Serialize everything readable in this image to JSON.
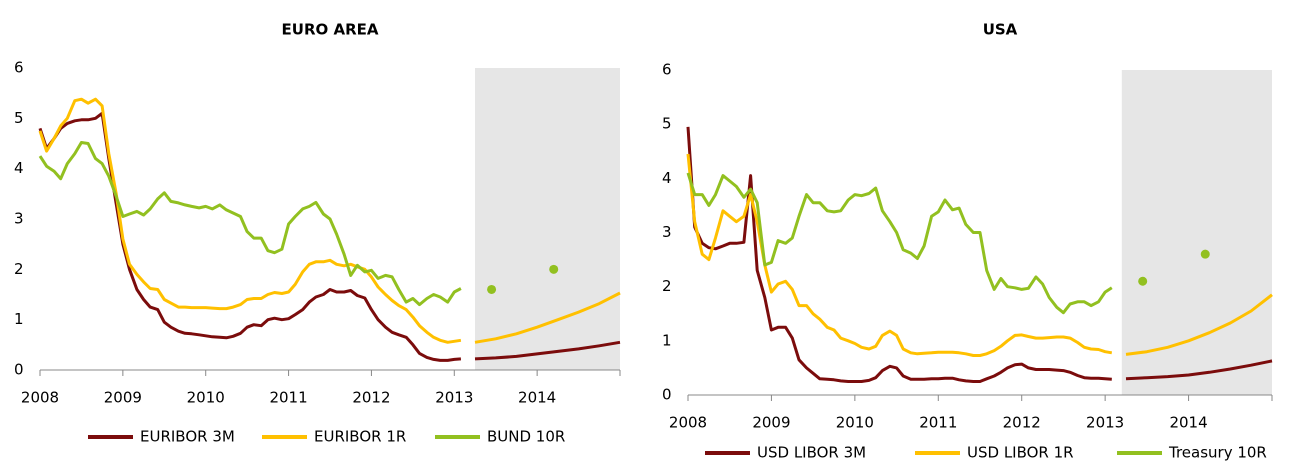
{
  "chart_data": [
    {
      "type": "line",
      "title": "EURO AREA",
      "x": [
        2008.0,
        2008.08,
        2008.17,
        2008.25,
        2008.33,
        2008.42,
        2008.5,
        2008.58,
        2008.67,
        2008.75,
        2008.83,
        2008.92,
        2009.0,
        2009.08,
        2009.17,
        2009.25,
        2009.33,
        2009.42,
        2009.5,
        2009.58,
        2009.67,
        2009.75,
        2009.83,
        2009.92,
        2010.0,
        2010.08,
        2010.17,
        2010.25,
        2010.33,
        2010.42,
        2010.5,
        2010.58,
        2010.67,
        2010.75,
        2010.83,
        2010.92,
        2011.0,
        2011.08,
        2011.17,
        2011.25,
        2011.33,
        2011.42,
        2011.5,
        2011.58,
        2011.67,
        2011.75,
        2011.83,
        2011.92,
        2012.0,
        2012.08,
        2012.17,
        2012.25,
        2012.33,
        2012.42,
        2012.5,
        2012.58,
        2012.67,
        2012.75,
        2012.83,
        2012.92,
        2013.0,
        2013.08,
        2013.17,
        2013.25,
        2013.5,
        2013.75,
        2014.0,
        2014.25,
        2014.5,
        2014.75,
        2015.0
      ],
      "series": [
        {
          "name": "EURIBOR 3M",
          "color": "#7b0c0c",
          "values": [
            4.8,
            4.4,
            4.6,
            4.8,
            4.9,
            4.95,
            4.97,
            4.97,
            5.0,
            5.1,
            4.2,
            3.3,
            2.5,
            2.0,
            1.6,
            1.4,
            1.25,
            1.2,
            0.95,
            0.85,
            0.77,
            0.73,
            0.72,
            0.7,
            0.68,
            0.66,
            0.65,
            0.64,
            0.67,
            0.73,
            0.85,
            0.9,
            0.88,
            1.0,
            1.03,
            1.0,
            1.02,
            1.1,
            1.2,
            1.35,
            1.45,
            1.5,
            1.6,
            1.55,
            1.55,
            1.58,
            1.48,
            1.43,
            1.2,
            1.0,
            0.85,
            0.75,
            0.7,
            0.65,
            0.5,
            0.33,
            0.25,
            0.21,
            0.19,
            0.19,
            0.21,
            0.22,
            null,
            0.22,
            0.24,
            0.27,
            0.32,
            0.37,
            0.42,
            0.48,
            0.55
          ]
        },
        {
          "name": "EURIBOR 1R",
          "color": "#ffc000",
          "values": [
            4.75,
            4.35,
            4.6,
            4.85,
            5.0,
            5.35,
            5.38,
            5.3,
            5.38,
            5.25,
            4.3,
            3.5,
            2.6,
            2.1,
            1.9,
            1.75,
            1.62,
            1.6,
            1.4,
            1.33,
            1.25,
            1.25,
            1.24,
            1.24,
            1.24,
            1.23,
            1.22,
            1.22,
            1.25,
            1.3,
            1.4,
            1.42,
            1.42,
            1.5,
            1.54,
            1.52,
            1.55,
            1.7,
            1.95,
            2.1,
            2.15,
            2.15,
            2.18,
            2.1,
            2.07,
            2.1,
            2.05,
            2.0,
            1.85,
            1.65,
            1.5,
            1.38,
            1.28,
            1.2,
            1.05,
            0.88,
            0.75,
            0.65,
            0.59,
            0.55,
            0.57,
            0.59,
            null,
            0.55,
            0.62,
            0.72,
            0.85,
            1.0,
            1.15,
            1.32,
            1.53
          ]
        },
        {
          "name": "BUND 10R",
          "color": "#92c020",
          "values": [
            4.25,
            4.05,
            3.95,
            3.8,
            4.1,
            4.3,
            4.52,
            4.5,
            4.2,
            4.1,
            3.85,
            3.45,
            3.05,
            3.1,
            3.15,
            3.08,
            3.2,
            3.4,
            3.52,
            3.35,
            3.32,
            3.28,
            3.25,
            3.22,
            3.25,
            3.2,
            3.28,
            3.18,
            3.12,
            3.05,
            2.75,
            2.62,
            2.62,
            2.37,
            2.33,
            2.4,
            2.9,
            3.05,
            3.2,
            3.25,
            3.33,
            3.1,
            3.0,
            2.7,
            2.3,
            1.88,
            2.08,
            1.95,
            1.98,
            1.82,
            1.88,
            1.85,
            1.6,
            1.35,
            1.42,
            1.3,
            1.42,
            1.5,
            1.45,
            1.35,
            1.55,
            1.62,
            null,
            null,
            null,
            null,
            null,
            null,
            null,
            null,
            null
          ],
          "forecast_points": {
            "x": [
              2013.45,
              2014.2
            ],
            "values": [
              1.6,
              2.0
            ]
          }
        }
      ],
      "shade": [
        2013.25,
        2015.0
      ],
      "xlim": [
        2008,
        2015
      ],
      "xticks": [
        2008,
        2009,
        2010,
        2011,
        2012,
        2013,
        2014
      ],
      "ylim": [
        0,
        6
      ],
      "yticks": [
        0,
        1,
        2,
        3,
        4,
        5,
        6
      ]
    },
    {
      "type": "line",
      "title": "USA",
      "x": [
        2008.0,
        2008.08,
        2008.17,
        2008.25,
        2008.33,
        2008.42,
        2008.5,
        2008.58,
        2008.67,
        2008.75,
        2008.83,
        2008.92,
        2009.0,
        2009.08,
        2009.17,
        2009.25,
        2009.33,
        2009.42,
        2009.5,
        2009.58,
        2009.67,
        2009.75,
        2009.83,
        2009.92,
        2010.0,
        2010.08,
        2010.17,
        2010.25,
        2010.33,
        2010.42,
        2010.5,
        2010.58,
        2010.67,
        2010.75,
        2010.83,
        2010.92,
        2011.0,
        2011.08,
        2011.17,
        2011.25,
        2011.33,
        2011.42,
        2011.5,
        2011.58,
        2011.67,
        2011.75,
        2011.83,
        2011.92,
        2012.0,
        2012.08,
        2012.17,
        2012.25,
        2012.33,
        2012.42,
        2012.5,
        2012.58,
        2012.67,
        2012.75,
        2012.83,
        2012.92,
        2013.0,
        2013.08,
        2013.17,
        2013.25,
        2013.5,
        2013.75,
        2014.0,
        2014.25,
        2014.5,
        2014.75,
        2015.0
      ],
      "series": [
        {
          "name": "USD LIBOR 3M",
          "color": "#7b0c0c",
          "values": [
            4.95,
            3.1,
            2.8,
            2.72,
            2.7,
            2.75,
            2.8,
            2.8,
            2.82,
            4.05,
            2.3,
            1.8,
            1.2,
            1.25,
            1.25,
            1.05,
            0.65,
            0.5,
            0.4,
            0.3,
            0.29,
            0.28,
            0.26,
            0.25,
            0.25,
            0.25,
            0.27,
            0.32,
            0.45,
            0.53,
            0.5,
            0.35,
            0.29,
            0.29,
            0.29,
            0.3,
            0.3,
            0.31,
            0.31,
            0.28,
            0.26,
            0.25,
            0.25,
            0.3,
            0.35,
            0.42,
            0.5,
            0.56,
            0.57,
            0.5,
            0.47,
            0.47,
            0.47,
            0.46,
            0.45,
            0.42,
            0.36,
            0.32,
            0.31,
            0.31,
            0.3,
            0.29,
            null,
            0.3,
            0.32,
            0.34,
            0.37,
            0.42,
            0.48,
            0.55,
            0.63
          ]
        },
        {
          "name": "USD LIBOR 1R",
          "color": "#ffc000",
          "values": [
            4.45,
            3.2,
            2.6,
            2.5,
            2.9,
            3.4,
            3.3,
            3.2,
            3.3,
            3.7,
            3.2,
            2.4,
            1.9,
            2.05,
            2.1,
            1.95,
            1.65,
            1.65,
            1.5,
            1.4,
            1.25,
            1.2,
            1.05,
            1.0,
            0.95,
            0.88,
            0.85,
            0.9,
            1.1,
            1.18,
            1.1,
            0.85,
            0.78,
            0.76,
            0.77,
            0.78,
            0.79,
            0.79,
            0.79,
            0.78,
            0.76,
            0.73,
            0.73,
            0.76,
            0.82,
            0.9,
            1.0,
            1.1,
            1.11,
            1.08,
            1.05,
            1.05,
            1.06,
            1.07,
            1.07,
            1.05,
            0.97,
            0.88,
            0.85,
            0.84,
            0.8,
            0.78,
            null,
            0.75,
            0.8,
            0.88,
            1.0,
            1.15,
            1.33,
            1.55,
            1.85
          ]
        },
        {
          "name": "Treasury 10R",
          "color": "#92c020",
          "values": [
            4.1,
            3.7,
            3.7,
            3.5,
            3.7,
            4.05,
            3.95,
            3.85,
            3.65,
            3.8,
            3.55,
            2.4,
            2.45,
            2.85,
            2.8,
            2.9,
            3.3,
            3.7,
            3.55,
            3.55,
            3.4,
            3.38,
            3.4,
            3.6,
            3.7,
            3.68,
            3.72,
            3.82,
            3.4,
            3.2,
            3.0,
            2.68,
            2.62,
            2.52,
            2.75,
            3.3,
            3.38,
            3.6,
            3.42,
            3.45,
            3.15,
            3.0,
            3.0,
            2.3,
            1.95,
            2.15,
            2.0,
            1.98,
            1.95,
            1.97,
            2.18,
            2.05,
            1.8,
            1.62,
            1.52,
            1.68,
            1.72,
            1.72,
            1.65,
            1.72,
            1.9,
            1.98,
            null,
            null,
            null,
            null,
            null,
            null,
            null,
            null,
            null
          ],
          "forecast_points": {
            "x": [
              2013.45,
              2014.2
            ],
            "values": [
              2.1,
              2.6
            ]
          }
        }
      ],
      "shade": [
        2013.2,
        2015.0
      ],
      "xlim": [
        2008,
        2015
      ],
      "xticks": [
        2008,
        2009,
        2010,
        2011,
        2012,
        2013,
        2014
      ],
      "ylim": [
        0,
        6
      ],
      "yticks": [
        0,
        1,
        2,
        3,
        4,
        5,
        6
      ]
    }
  ]
}
